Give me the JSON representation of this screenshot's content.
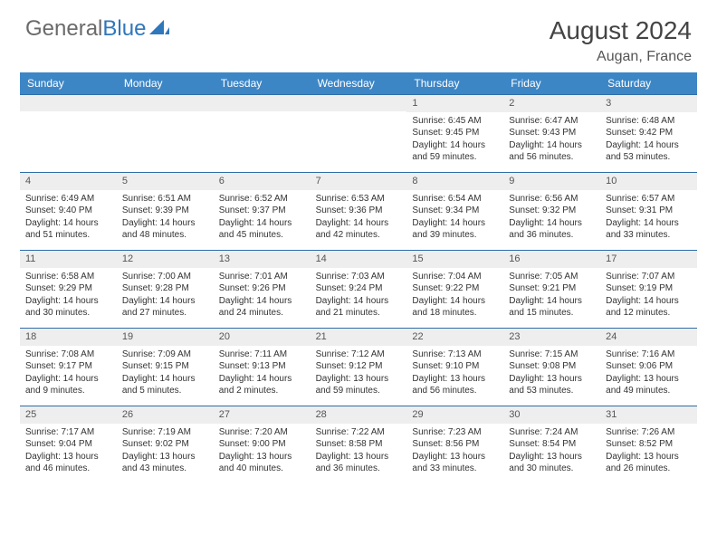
{
  "brand": {
    "name_gray": "General",
    "name_blue": "Blue"
  },
  "title": "August 2024",
  "location": "Augan, France",
  "weekdays": [
    "Sunday",
    "Monday",
    "Tuesday",
    "Wednesday",
    "Thursday",
    "Friday",
    "Saturday"
  ],
  "colors": {
    "header_bar": "#3d86c6",
    "header_text": "#ffffff",
    "cell_border": "#2f6da8",
    "daynum_bg": "#eeeeee",
    "body_text": "#333333",
    "brand_gray": "#6a6a6a",
    "brand_blue": "#2f77bb"
  },
  "layout": {
    "leading_blanks": 4,
    "rows": 5,
    "cols": 7
  },
  "days": [
    {
      "n": 1,
      "sunrise": "6:45 AM",
      "sunset": "9:45 PM",
      "daylight": "14 hours and 59 minutes."
    },
    {
      "n": 2,
      "sunrise": "6:47 AM",
      "sunset": "9:43 PM",
      "daylight": "14 hours and 56 minutes."
    },
    {
      "n": 3,
      "sunrise": "6:48 AM",
      "sunset": "9:42 PM",
      "daylight": "14 hours and 53 minutes."
    },
    {
      "n": 4,
      "sunrise": "6:49 AM",
      "sunset": "9:40 PM",
      "daylight": "14 hours and 51 minutes."
    },
    {
      "n": 5,
      "sunrise": "6:51 AM",
      "sunset": "9:39 PM",
      "daylight": "14 hours and 48 minutes."
    },
    {
      "n": 6,
      "sunrise": "6:52 AM",
      "sunset": "9:37 PM",
      "daylight": "14 hours and 45 minutes."
    },
    {
      "n": 7,
      "sunrise": "6:53 AM",
      "sunset": "9:36 PM",
      "daylight": "14 hours and 42 minutes."
    },
    {
      "n": 8,
      "sunrise": "6:54 AM",
      "sunset": "9:34 PM",
      "daylight": "14 hours and 39 minutes."
    },
    {
      "n": 9,
      "sunrise": "6:56 AM",
      "sunset": "9:32 PM",
      "daylight": "14 hours and 36 minutes."
    },
    {
      "n": 10,
      "sunrise": "6:57 AM",
      "sunset": "9:31 PM",
      "daylight": "14 hours and 33 minutes."
    },
    {
      "n": 11,
      "sunrise": "6:58 AM",
      "sunset": "9:29 PM",
      "daylight": "14 hours and 30 minutes."
    },
    {
      "n": 12,
      "sunrise": "7:00 AM",
      "sunset": "9:28 PM",
      "daylight": "14 hours and 27 minutes."
    },
    {
      "n": 13,
      "sunrise": "7:01 AM",
      "sunset": "9:26 PM",
      "daylight": "14 hours and 24 minutes."
    },
    {
      "n": 14,
      "sunrise": "7:03 AM",
      "sunset": "9:24 PM",
      "daylight": "14 hours and 21 minutes."
    },
    {
      "n": 15,
      "sunrise": "7:04 AM",
      "sunset": "9:22 PM",
      "daylight": "14 hours and 18 minutes."
    },
    {
      "n": 16,
      "sunrise": "7:05 AM",
      "sunset": "9:21 PM",
      "daylight": "14 hours and 15 minutes."
    },
    {
      "n": 17,
      "sunrise": "7:07 AM",
      "sunset": "9:19 PM",
      "daylight": "14 hours and 12 minutes."
    },
    {
      "n": 18,
      "sunrise": "7:08 AM",
      "sunset": "9:17 PM",
      "daylight": "14 hours and 9 minutes."
    },
    {
      "n": 19,
      "sunrise": "7:09 AM",
      "sunset": "9:15 PM",
      "daylight": "14 hours and 5 minutes."
    },
    {
      "n": 20,
      "sunrise": "7:11 AM",
      "sunset": "9:13 PM",
      "daylight": "14 hours and 2 minutes."
    },
    {
      "n": 21,
      "sunrise": "7:12 AM",
      "sunset": "9:12 PM",
      "daylight": "13 hours and 59 minutes."
    },
    {
      "n": 22,
      "sunrise": "7:13 AM",
      "sunset": "9:10 PM",
      "daylight": "13 hours and 56 minutes."
    },
    {
      "n": 23,
      "sunrise": "7:15 AM",
      "sunset": "9:08 PM",
      "daylight": "13 hours and 53 minutes."
    },
    {
      "n": 24,
      "sunrise": "7:16 AM",
      "sunset": "9:06 PM",
      "daylight": "13 hours and 49 minutes."
    },
    {
      "n": 25,
      "sunrise": "7:17 AM",
      "sunset": "9:04 PM",
      "daylight": "13 hours and 46 minutes."
    },
    {
      "n": 26,
      "sunrise": "7:19 AM",
      "sunset": "9:02 PM",
      "daylight": "13 hours and 43 minutes."
    },
    {
      "n": 27,
      "sunrise": "7:20 AM",
      "sunset": "9:00 PM",
      "daylight": "13 hours and 40 minutes."
    },
    {
      "n": 28,
      "sunrise": "7:22 AM",
      "sunset": "8:58 PM",
      "daylight": "13 hours and 36 minutes."
    },
    {
      "n": 29,
      "sunrise": "7:23 AM",
      "sunset": "8:56 PM",
      "daylight": "13 hours and 33 minutes."
    },
    {
      "n": 30,
      "sunrise": "7:24 AM",
      "sunset": "8:54 PM",
      "daylight": "13 hours and 30 minutes."
    },
    {
      "n": 31,
      "sunrise": "7:26 AM",
      "sunset": "8:52 PM",
      "daylight": "13 hours and 26 minutes."
    }
  ],
  "labels": {
    "sunrise": "Sunrise:",
    "sunset": "Sunset:",
    "daylight": "Daylight:"
  }
}
